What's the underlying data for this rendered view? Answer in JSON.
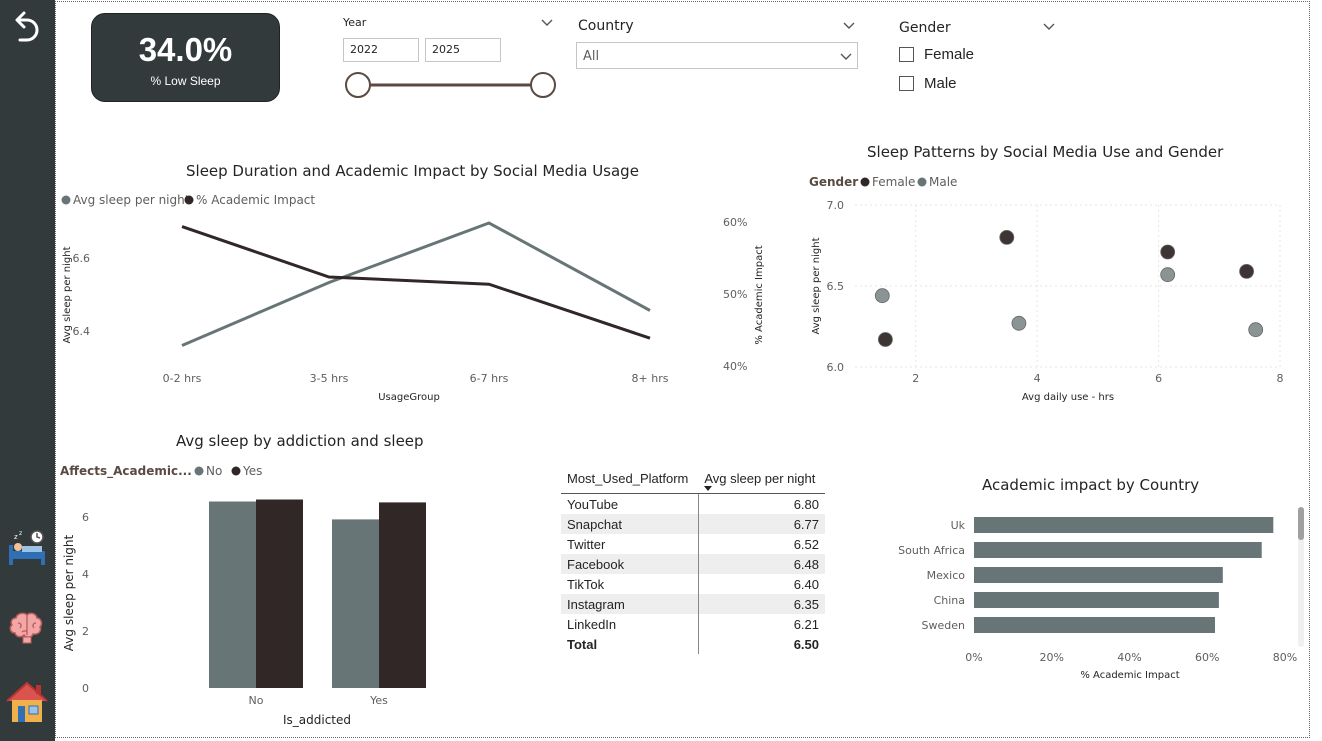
{
  "sidebar": {
    "back_icon": "back-arrow-icon",
    "items": [
      {
        "name": "sleep",
        "icon": "person-sleeping-bed-icon"
      },
      {
        "name": "brain",
        "icon": "brain-icon"
      },
      {
        "name": "home",
        "icon": "house-icon"
      }
    ]
  },
  "kpi": {
    "value": "34.0%",
    "label": "% Low Sleep"
  },
  "year_slicer": {
    "title": "Year",
    "start": "2022",
    "end": "2025"
  },
  "country_slicer": {
    "title": "Country",
    "selected": "All"
  },
  "gender_slicer": {
    "title": "Gender",
    "options": [
      "Female",
      "Male"
    ]
  },
  "colors": {
    "dark": "#322727",
    "gray": "#687577",
    "sidebar": "#333a3b"
  },
  "line_chart": {
    "title": "Sleep Duration and Academic Impact by Social Media Usage",
    "legend": [
      "Avg sleep per night",
      "% Academic Impact"
    ],
    "xlabel": "UsageGroup",
    "ylabel_left": "Avg sleep per night",
    "ylabel_right": "% Academic Impact",
    "left_ticks": [
      "6.6",
      "6.4"
    ],
    "right_ticks": [
      "60%",
      "50%",
      "40%"
    ]
  },
  "scatter_chart": {
    "title": "Sleep Patterns by Social Media Use and Gender",
    "legend_title": "Gender",
    "legend": [
      "Female",
      "Male"
    ],
    "xlabel": "Avg daily use - hrs",
    "ylabel": "Avg sleep per night",
    "x_ticks": [
      "2",
      "4",
      "6",
      "8"
    ],
    "y_ticks": [
      "7.0",
      "6.5",
      "6.0"
    ]
  },
  "bar_chart": {
    "title": "Avg sleep by addiction and sleep",
    "legend_title": "Affects_Academic...",
    "legend": [
      "No",
      "Yes"
    ],
    "xlabel": "Is_addicted",
    "ylabel": "Avg sleep per night",
    "y_ticks": [
      "6",
      "4",
      "2",
      "0"
    ]
  },
  "table": {
    "headers": [
      "Most_Used_Platform",
      "Avg sleep per night"
    ],
    "rows": [
      [
        "YouTube",
        "6.80"
      ],
      [
        "Snapchat",
        "6.77"
      ],
      [
        "Twitter",
        "6.52"
      ],
      [
        "Facebook",
        "6.48"
      ],
      [
        "TikTok",
        "6.40"
      ],
      [
        "Instagram",
        "6.35"
      ],
      [
        "LinkedIn",
        "6.21"
      ]
    ],
    "total": [
      "Total",
      "6.50"
    ]
  },
  "hbar_chart": {
    "title": "Academic impact by Country",
    "xlabel": "% Academic Impact",
    "x_ticks": [
      "0%",
      "20%",
      "40%",
      "60%",
      "80%"
    ]
  },
  "chart_data": [
    {
      "type": "line",
      "categories": [
        "0-2 hrs",
        "3-5 hrs",
        "6-7 hrs",
        "8+ hrs"
      ],
      "series": [
        {
          "name": "Avg sleep per night",
          "axis": "left",
          "values": [
            6.32,
            6.5,
            6.67,
            6.42
          ]
        },
        {
          "name": "% Academic Impact",
          "axis": "right",
          "values": [
            59.5,
            52.5,
            51.5,
            44.0
          ]
        }
      ],
      "ylim_left": [
        6.25,
        6.75
      ],
      "ylim_right": [
        40,
        60
      ]
    },
    {
      "type": "scatter",
      "xlim": [
        1,
        8
      ],
      "ylim": [
        6.0,
        7.0
      ],
      "series": [
        {
          "name": "Female",
          "points": [
            [
              1.5,
              6.17
            ],
            [
              3.5,
              6.8
            ],
            [
              6.15,
              6.71
            ],
            [
              7.45,
              6.59
            ]
          ]
        },
        {
          "name": "Male",
          "points": [
            [
              1.45,
              6.44
            ],
            [
              3.7,
              6.27
            ],
            [
              6.15,
              6.57
            ],
            [
              7.6,
              6.23
            ]
          ]
        }
      ]
    },
    {
      "type": "bar",
      "categories": [
        "No",
        "Yes"
      ],
      "series": [
        {
          "name": "No",
          "values": [
            6.55,
            5.92
          ]
        },
        {
          "name": "Yes",
          "values": [
            6.62,
            6.52
          ]
        }
      ],
      "ylim": [
        0,
        7.2
      ]
    },
    {
      "type": "bar",
      "orientation": "horizontal",
      "categories": [
        "Uk",
        "South Africa",
        "Mexico",
        "China",
        "Sweden"
      ],
      "values": [
        77,
        74,
        64,
        63,
        62
      ],
      "xlim": [
        0,
        80
      ]
    }
  ]
}
